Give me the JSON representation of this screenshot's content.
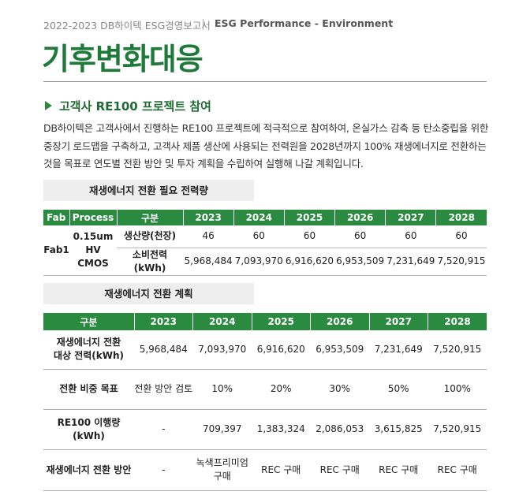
{
  "header": {
    "report": "2022-2023 DB하이텍 ESG경영보고서",
    "section": "ESG Performance - Environment"
  },
  "title": "기후변화대응",
  "heading": "고객사 RE100 프로젝트 참여",
  "paragraph": "DB하이텍은 고객사에서 진행하는  RE100 프로젝트에 적극적으로 참여하여, 온실가스 감축 등 탄소중립을 위한\n중장기 로드맵을 구축하고, 고객사 제품 생산에 사용되는 전력원을 2028년까지 100% 재생에너지로 전환하는\n것을 목표로 연도별 전환 방안 및 투자 계획을 수립하여 실행해 나갈 계획입니다.",
  "table1": {
    "title": "재생에너지 전환 필요 전력량",
    "header": [
      "Fab",
      "Process",
      "구분",
      "2023",
      "2024",
      "2025",
      "2026",
      "2027",
      "2028"
    ],
    "fab": "Fab1",
    "process": "0.15um\nHV CMOS",
    "rows": [
      [
        "생산량(천장)",
        "46",
        "60",
        "60",
        "60",
        "60",
        "60"
      ],
      [
        "소비전력(kWh)",
        "5,968,484",
        "7,093,970",
        "6,916,620",
        "6,953,509",
        "7,231,649",
        "7,520,915"
      ]
    ]
  },
  "table2": {
    "title": "재생에너지 전환 계획",
    "header": [
      "구분",
      "2023",
      "2024",
      "2025",
      "2026",
      "2027",
      "2028"
    ],
    "rows": [
      [
        "재생에너지 전환\n대상 전력(kWh)",
        "5,968,484",
        "7,093,970",
        "6,916,620",
        "6,953,509",
        "7,231,649",
        "7,520,915"
      ],
      [
        "전환 비중 목표",
        "전환 방안 검토",
        "10%",
        "20%",
        "30%",
        "50%",
        "100%"
      ],
      [
        "RE100 이행량(kWh)",
        "-",
        "709,397",
        "1,383,324",
        "2,086,053",
        "3,615,825",
        "7,520,915"
      ],
      [
        "재생에너지 전환 방안",
        "-",
        "녹색프리미엄\n구매",
        "REC 구매",
        "REC 구매",
        "REC 구매",
        "REC 구매"
      ]
    ]
  }
}
